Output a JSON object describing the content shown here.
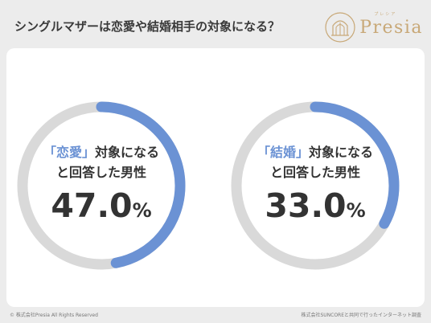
{
  "title": "シングルマザーは恋愛や結婚相手の対象になる？",
  "logo": {
    "text": "Presia",
    "sub": "プレシア"
  },
  "colors": {
    "accent": "#6b92d4",
    "track": "#d9d9d9",
    "gold": "#c8a877"
  },
  "chart_data": [
    {
      "type": "pie",
      "label_open": "「",
      "highlight": "恋愛",
      "label_close": "」",
      "label_rest": "対象になる",
      "line2": "と回答した男性",
      "value": 47.0,
      "value_text": "47.0",
      "unit": "%"
    },
    {
      "type": "pie",
      "label_open": "「",
      "highlight": "結婚",
      "label_close": "」",
      "label_rest": "対象になる",
      "line2": "と回答した男性",
      "value": 33.0,
      "value_text": "33.0",
      "unit": "%"
    }
  ],
  "footer": {
    "left": "© 株式会社Presia All Rights Reserved",
    "right": "株式会社SUNCOREと共同で行ったインターネット調査"
  }
}
